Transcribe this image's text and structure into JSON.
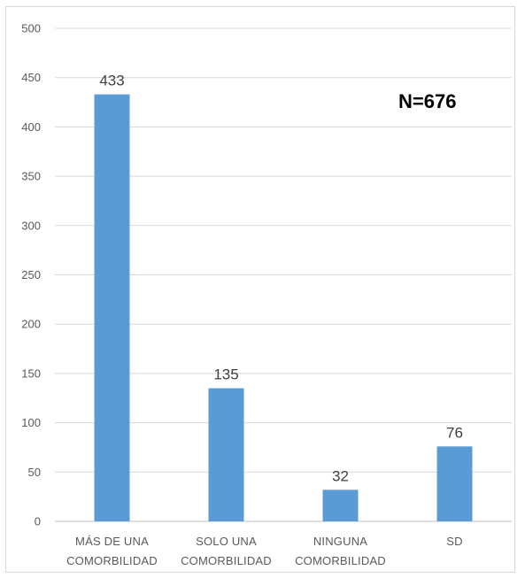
{
  "chart_data": {
    "type": "bar",
    "categories": [
      [
        "MÁS DE UNA",
        "COMORBILIDAD"
      ],
      [
        "SOLO UNA",
        "COMORBILIDAD"
      ],
      [
        "NINGUNA",
        "COMORBILIDAD"
      ],
      [
        "SD"
      ]
    ],
    "values": [
      433,
      135,
      32,
      76
    ],
    "data_labels": [
      "433",
      "135",
      "32",
      "76"
    ],
    "title": "",
    "xlabel": "",
    "ylabel": "",
    "ylim": [
      0,
      500
    ],
    "yticks": [
      "0",
      "50",
      "100",
      "150",
      "200",
      "250",
      "300",
      "350",
      "400",
      "450",
      "500"
    ],
    "grid": true,
    "legend": "none",
    "bar_color": "#5b9bd5",
    "annotation": "N=676"
  }
}
